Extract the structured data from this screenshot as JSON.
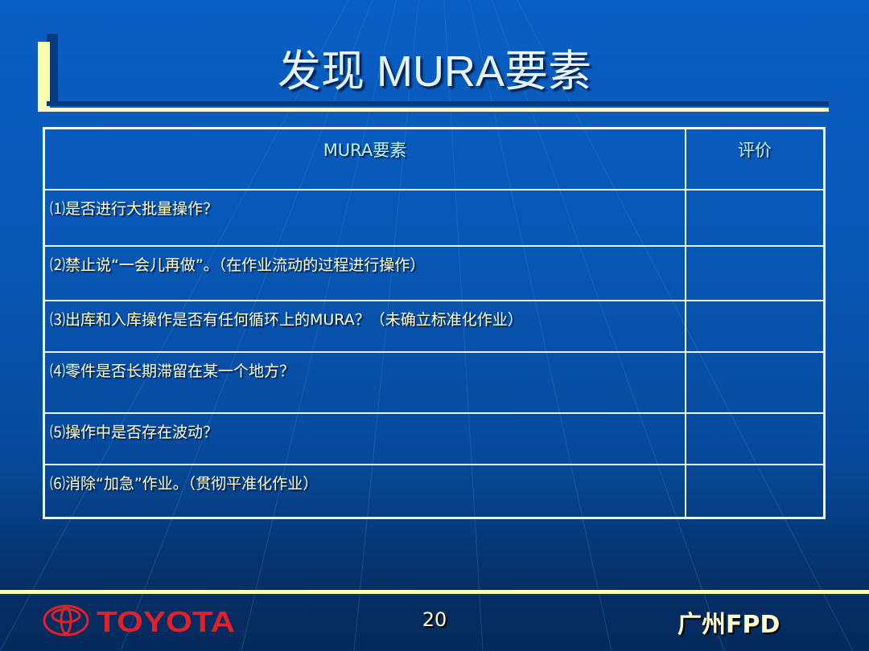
{
  "slide": {
    "title": "发现 MURA要素",
    "table": {
      "headers": [
        "MURA要素",
        "评价"
      ],
      "rows": [
        {
          "item": "⑴是否进行大批量操作？",
          "rating": ""
        },
        {
          "item": "⑵禁止说“一会儿再做”。（在作业流动的过程进行操作）",
          "rating": ""
        },
        {
          "item": "⑶出库和入库操作是否有任何循环上的MURA？（未确立标准化作业）",
          "rating": ""
        },
        {
          "item": "⑷零件是否长期滞留在某一个地方？",
          "rating": ""
        },
        {
          "item": "⑸操作中是否存在波动？",
          "rating": ""
        },
        {
          "item": "⑹消除“加急”作业。（贯彻平准化作业）",
          "rating": ""
        }
      ]
    },
    "footer": {
      "logo_text": "TOYOTA",
      "page_number": "20",
      "organization": "广州FPD"
    },
    "colors": {
      "accent": "#ffffcc",
      "logo": "#e0202a",
      "background": "#0856b4"
    }
  }
}
